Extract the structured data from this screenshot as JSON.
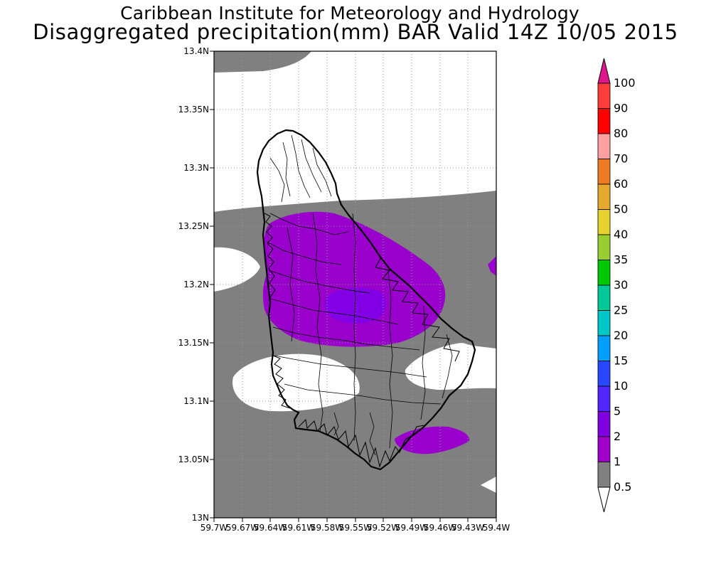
{
  "header": {
    "institute": "Caribbean Institute for Meteorology and Hydrology",
    "product": "Disaggregated precipitation(mm) BAR Valid 14Z 10/05 2015"
  },
  "map": {
    "region": "Barbados",
    "lat_ticks": [
      "13.4N",
      "13.35N",
      "13.3N",
      "13.25N",
      "13.2N",
      "13.15N",
      "13.1N",
      "13.05N",
      "13N"
    ],
    "lon_ticks": [
      "59.7W",
      "59.67W",
      "59.64W",
      "59.61W",
      "59.58W",
      "59.55W",
      "59.52W",
      "59.49W",
      "59.46W",
      "59.43W",
      "59.4W"
    ],
    "grid": "dotted",
    "field_colors": {
      "below_0_5": "#ffffff",
      "0_5_to_1": "#808080",
      "1_to_2": "#9900cc",
      "2_to_5": "#8400e0"
    }
  },
  "colorbar": {
    "labels": [
      "100",
      "90",
      "80",
      "70",
      "60",
      "50",
      "40",
      "35",
      "30",
      "25",
      "20",
      "15",
      "10",
      "5",
      "2",
      "1",
      "0.5"
    ],
    "colors": [
      "#ff3c3c",
      "#ff0000",
      "#ffa0a0",
      "#ee7a24",
      "#e6a92e",
      "#e6d22e",
      "#9acd32",
      "#00c800",
      "#00c896",
      "#00c8c8",
      "#009eff",
      "#2848ff",
      "#5028ff",
      "#8000e0",
      "#a000c8",
      "#808080"
    ],
    "over_color": "#e0168c",
    "under_color": "#ffffff"
  }
}
